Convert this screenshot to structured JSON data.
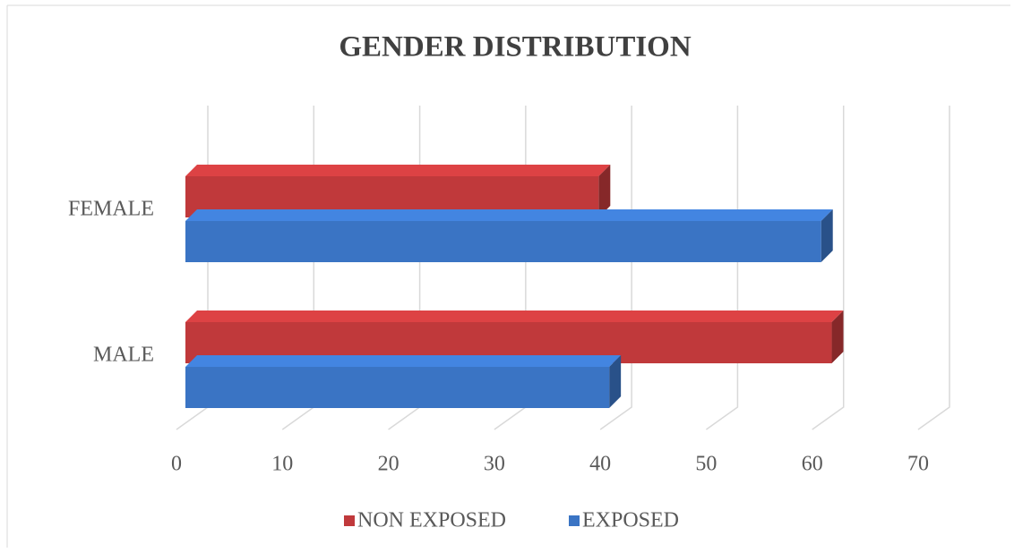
{
  "chart_data": {
    "type": "bar3d_horizontal",
    "title": "GENDER DISTRIBUTION",
    "categories": [
      "MALE",
      "FEMALE"
    ],
    "series": [
      {
        "name": "NON EXPOSED",
        "color": "#c0393b",
        "values": [
          61,
          39
        ]
      },
      {
        "name": "EXPOSED",
        "color": "#3a74c4",
        "values": [
          40,
          60
        ]
      }
    ],
    "xlim": [
      0,
      70
    ],
    "xticks": [
      0,
      10,
      20,
      30,
      40,
      50,
      60,
      70
    ],
    "grid": true,
    "legend": "bottom"
  }
}
